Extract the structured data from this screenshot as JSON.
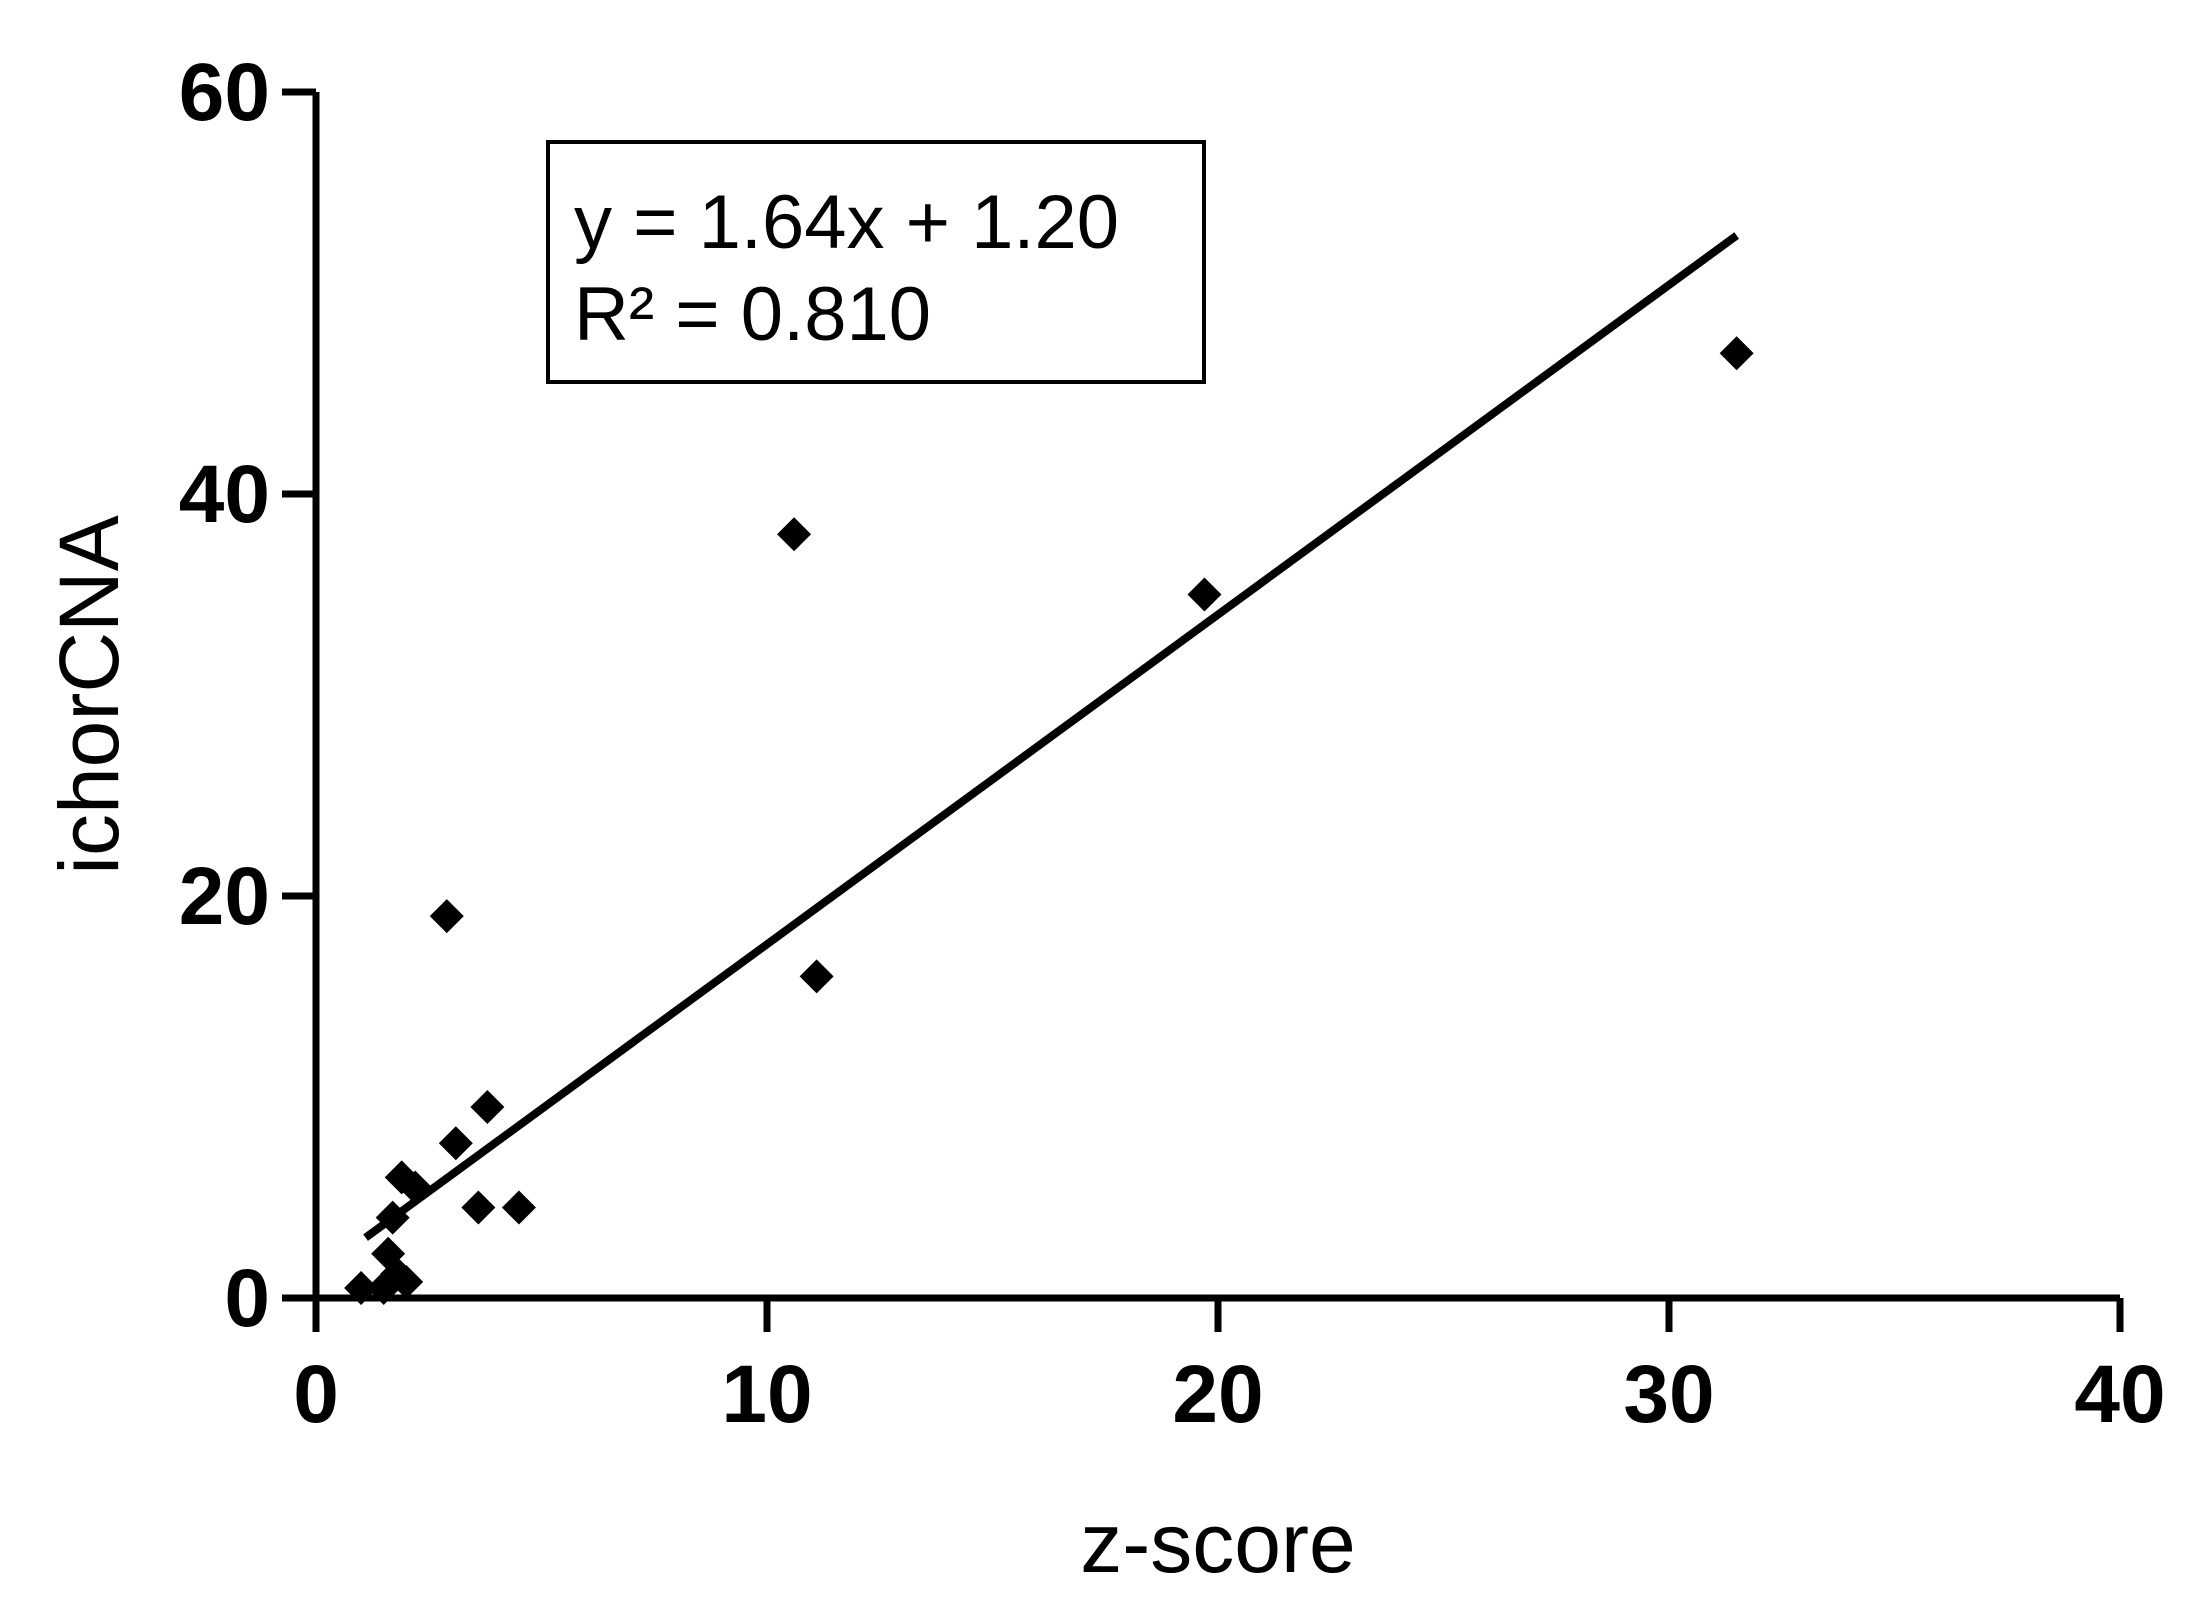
{
  "chart_data": {
    "type": "scatter",
    "title": "",
    "xlabel": "z-score",
    "ylabel": "ichorCNA",
    "xlim": [
      0,
      40
    ],
    "ylim": [
      0,
      60
    ],
    "xticks": [
      0,
      10,
      20,
      30,
      40
    ],
    "yticks": [
      0,
      20,
      40,
      60
    ],
    "grid": false,
    "marker": "diamond",
    "colors": {
      "points": "#000000",
      "line": "#000000",
      "axes": "#000000"
    },
    "series": [
      {
        "points": [
          {
            "x": 1.0,
            "y": 0.5
          },
          {
            "x": 1.5,
            "y": 0.5
          },
          {
            "x": 1.6,
            "y": 2.2
          },
          {
            "x": 1.7,
            "y": 4.0
          },
          {
            "x": 1.8,
            "y": 1.2
          },
          {
            "x": 1.9,
            "y": 6.0
          },
          {
            "x": 2.0,
            "y": 0.8
          },
          {
            "x": 2.2,
            "y": 5.5
          },
          {
            "x": 2.9,
            "y": 19.0
          },
          {
            "x": 3.1,
            "y": 7.7
          },
          {
            "x": 3.6,
            "y": 4.5
          },
          {
            "x": 3.8,
            "y": 9.5
          },
          {
            "x": 4.5,
            "y": 4.5
          },
          {
            "x": 10.6,
            "y": 38.0
          },
          {
            "x": 11.1,
            "y": 16.0
          },
          {
            "x": 19.7,
            "y": 35.0
          },
          {
            "x": 31.5,
            "y": 47.0
          }
        ]
      }
    ],
    "trendline": {
      "slope": 1.64,
      "intercept": 1.2,
      "x_range": [
        1.1,
        31.5
      ]
    },
    "annotation": {
      "lines": [
        "y = 1.64x + 1.20",
        "R² = 0.810"
      ]
    }
  }
}
